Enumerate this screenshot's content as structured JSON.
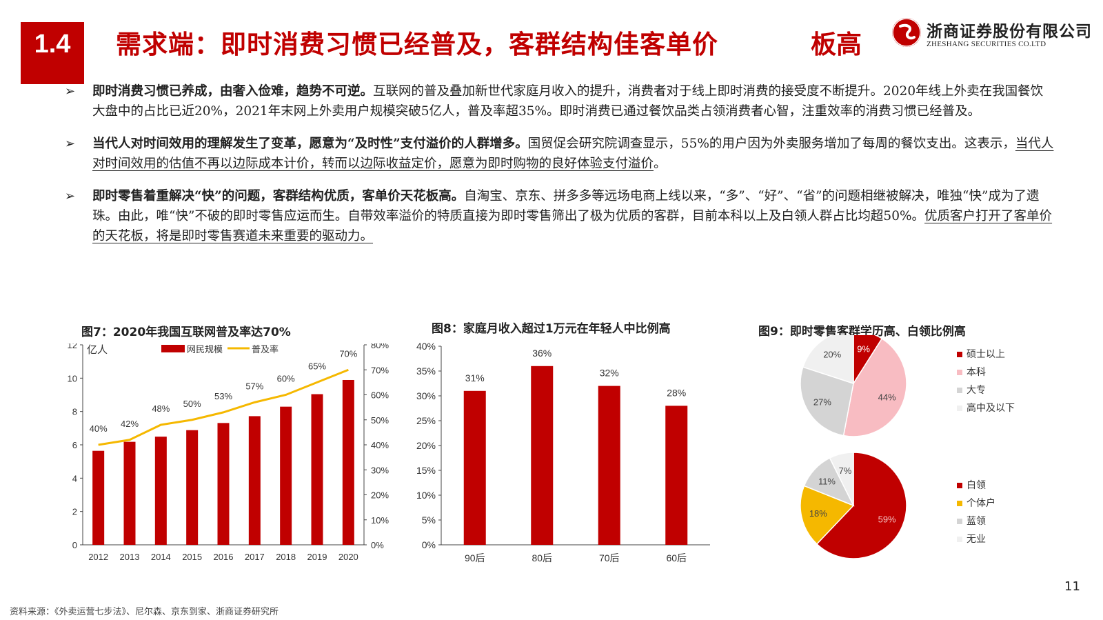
{
  "header": {
    "section_number": "1.4",
    "title_main": "需求端：即时消费习惯已经普及，客群结构佳客单价",
    "title_tail": "板高",
    "logo_cn": "浙商证券股份有限公司",
    "logo_en": "ZHESHANG SECURITIES CO.LTD"
  },
  "bullets": [
    {
      "arrow": "➢",
      "bold": "即时消费习惯已养成，由奢入俭难，趋势不可逆。",
      "text": "互联网的普及叠加新世代家庭月收入的提升，消费者对于线上即时消费的接受度不断提升。2020年线上外卖在我国餐饮大盘中的占比已近20%，2021年末网上外卖用户规模突破5亿人，普及率超35%。即时消费已通过餐饮品类占领消费者心智，注重效率的消费习惯已经普及。",
      "underlined": ""
    },
    {
      "arrow": "➢",
      "bold": "当代人对时间效用的理解发生了变革，愿意为“及时性”支付溢价的人群增多。",
      "text": "国贸促会研究院调查显示，55%的用户因为外卖服务增加了每周的餐饮支出。这表示，",
      "underlined": "当代人对时间效用的估值不再以边际成本计价，转而以边际收益定价，愿意为即时购物的良好体验支付溢价",
      "tail": "。"
    },
    {
      "arrow": "➢",
      "bold": "即时零售着重解决“快”的问题，客群结构优质，客单价天花板高。",
      "text": "自淘宝、京东、拼多多等远场电商上线以来，“多”、“好”、“省”的问题相继被解决，唯独“快”成为了遗珠。由此，唯“快”不破的即时零售应运而生。自带效率溢价的特质直接为即时零售筛出了极为优质的客群，目前本科以上及白领人群占比均超50%。",
      "underlined": "优质客户打开了客单价的天花板，将是即时零售赛道未来重要的驱动力。",
      "tail": ""
    }
  ],
  "figures": {
    "fig7_title": "图7：2020年我国互联网普及率达70%",
    "fig8_title": "图8：家庭月收入超过1万元在年轻人中比例高",
    "fig9_title": "图9：即时零售客群学历高、白领比例高"
  },
  "colors": {
    "red": "#c00000",
    "yellow": "#f5b800",
    "pink": "#f8bcc2",
    "gray": "#d4d4d4",
    "light": "#f0f0f0"
  },
  "chart_data": [
    {
      "type": "bar",
      "title": "图7：2020年我国互联网普及率达70%",
      "ylabel": "亿人",
      "categories": [
        "2012",
        "2013",
        "2014",
        "2015",
        "2016",
        "2017",
        "2018",
        "2019",
        "2020"
      ],
      "ylim": [
        0,
        12
      ],
      "yticks": [
        "0",
        "2",
        "4",
        "6",
        "8",
        "10",
        "12"
      ],
      "y2lim": [
        0,
        80
      ],
      "y2ticks": [
        "0%",
        "10%",
        "20%",
        "30%",
        "40%",
        "50%",
        "60%",
        "70%",
        "80%"
      ],
      "series": [
        {
          "name": "网民规模",
          "kind": "bar",
          "axis": "left",
          "values": [
            5.64,
            6.18,
            6.49,
            6.88,
            7.31,
            7.72,
            8.29,
            9.04,
            9.89
          ]
        },
        {
          "name": "普及率",
          "kind": "line",
          "axis": "right",
          "values": [
            40,
            42,
            48,
            50,
            53,
            57,
            60,
            65,
            70
          ],
          "labels": [
            "40%",
            "42%",
            "48%",
            "50%",
            "53%",
            "57%",
            "60%",
            "65%",
            "70%"
          ]
        }
      ],
      "legend": "top"
    },
    {
      "type": "bar",
      "title": "图8：家庭月收入超过1万元在年轻人中比例高",
      "categories": [
        "90后",
        "80后",
        "70后",
        "60后"
      ],
      "values": [
        31,
        36,
        32,
        28
      ],
      "labels": [
        "31%",
        "36%",
        "32%",
        "28%"
      ],
      "ylim": [
        0,
        40
      ],
      "yticks": [
        "0%",
        "5%",
        "10%",
        "15%",
        "20%",
        "25%",
        "30%",
        "35%",
        "40%"
      ]
    },
    {
      "type": "pie",
      "title": "图9：即时零售客群学历高、白领比例高",
      "categories": [
        "硕士以上",
        "本科",
        "大专",
        "高中及以下"
      ],
      "values": [
        9,
        44,
        27,
        20
      ],
      "labels": [
        "9%",
        "44%",
        "27%",
        "20%"
      ],
      "legend": "right"
    },
    {
      "type": "pie",
      "categories": [
        "白领",
        "个体户",
        "蓝领",
        "无业"
      ],
      "values": [
        59,
        18,
        11,
        7
      ],
      "labels": [
        "59%",
        "18%",
        "11%",
        "7%"
      ],
      "legend": "right"
    }
  ],
  "page_number": "11",
  "source": "资料来源：《外卖运营七步法》、尼尔森、京东到家、浙商证券研究所"
}
